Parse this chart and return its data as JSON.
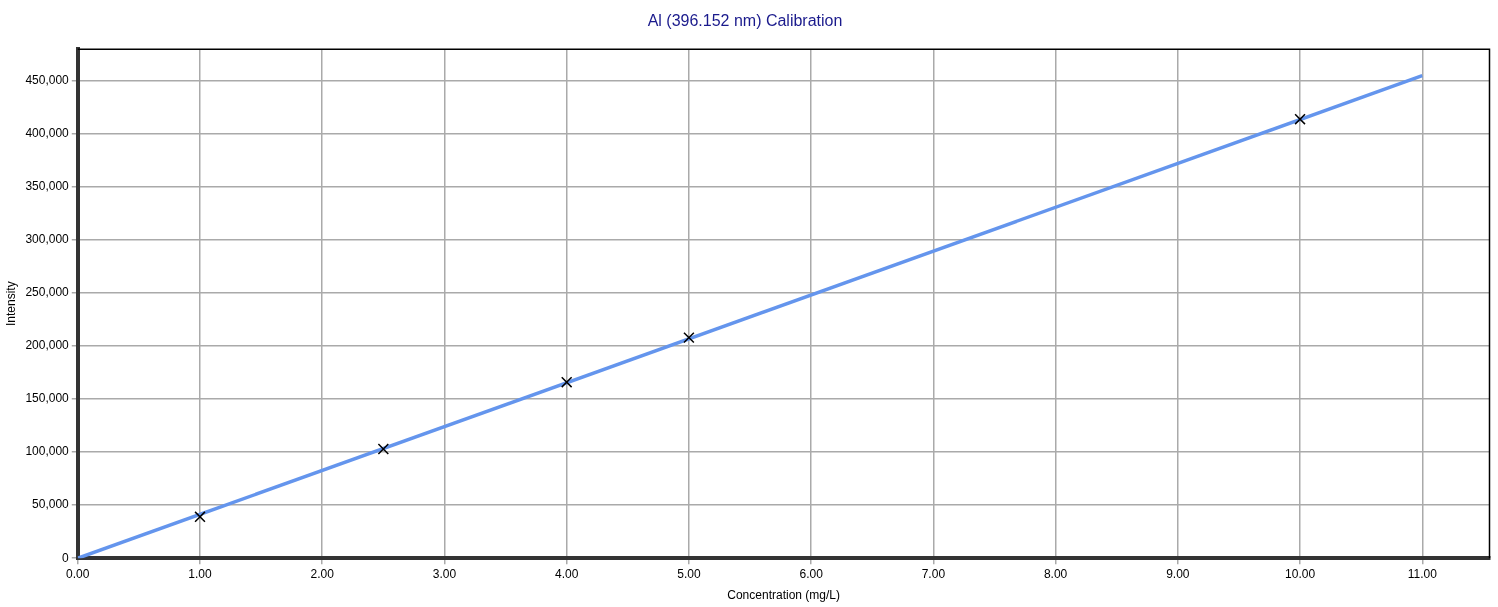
{
  "chart_data": {
    "type": "scatter",
    "title": "Al (396.152 nm) Calibration",
    "xlabel": "Concentration (mg/L)",
    "ylabel": "Intensity",
    "x": [
      1,
      2.5,
      4,
      5,
      10
    ],
    "series": [
      {
        "color": "#000000",
        "values": [
          39000,
          103000,
          166000,
          208000,
          414000
        ],
        "marker": "cross"
      },
      {
        "type": "line",
        "color": "#6495ed",
        "x": [
          0,
          11
        ],
        "values": [
          0,
          455000
        ],
        "marker": "none",
        "line_style": "solid"
      }
    ],
    "xlim": [
      0,
      11.55
    ],
    "xticks": [
      {
        "value": 0,
        "label": "0.00"
      },
      {
        "value": 1,
        "label": "1.00"
      },
      {
        "value": 2,
        "label": "2.00"
      },
      {
        "value": 3,
        "label": "3.00"
      },
      {
        "value": 4,
        "label": "4.00"
      },
      {
        "value": 5,
        "label": "5.00"
      },
      {
        "value": 6,
        "label": "6.00"
      },
      {
        "value": 7,
        "label": "7.00"
      },
      {
        "value": 8,
        "label": "8.00"
      },
      {
        "value": 9,
        "label": "9.00"
      },
      {
        "value": 10,
        "label": "10.00"
      },
      {
        "value": 11,
        "label": "11.00"
      }
    ],
    "ylim": [
      0,
      480000
    ],
    "yticks": [
      0,
      {
        "value": 50000,
        "label": "50,000"
      },
      {
        "value": 100000,
        "label": "100,000"
      },
      {
        "value": 150000,
        "label": "150,000"
      },
      {
        "value": 200000,
        "label": "200,000"
      },
      {
        "value": 250000,
        "label": "250,000"
      },
      {
        "value": 300000,
        "label": "300,000"
      },
      {
        "value": 350000,
        "label": "350,000"
      },
      {
        "value": 400000,
        "label": "400,000"
      },
      {
        "value": 450000,
        "label": "450,000"
      }
    ],
    "grid": true,
    "legend": false
  }
}
